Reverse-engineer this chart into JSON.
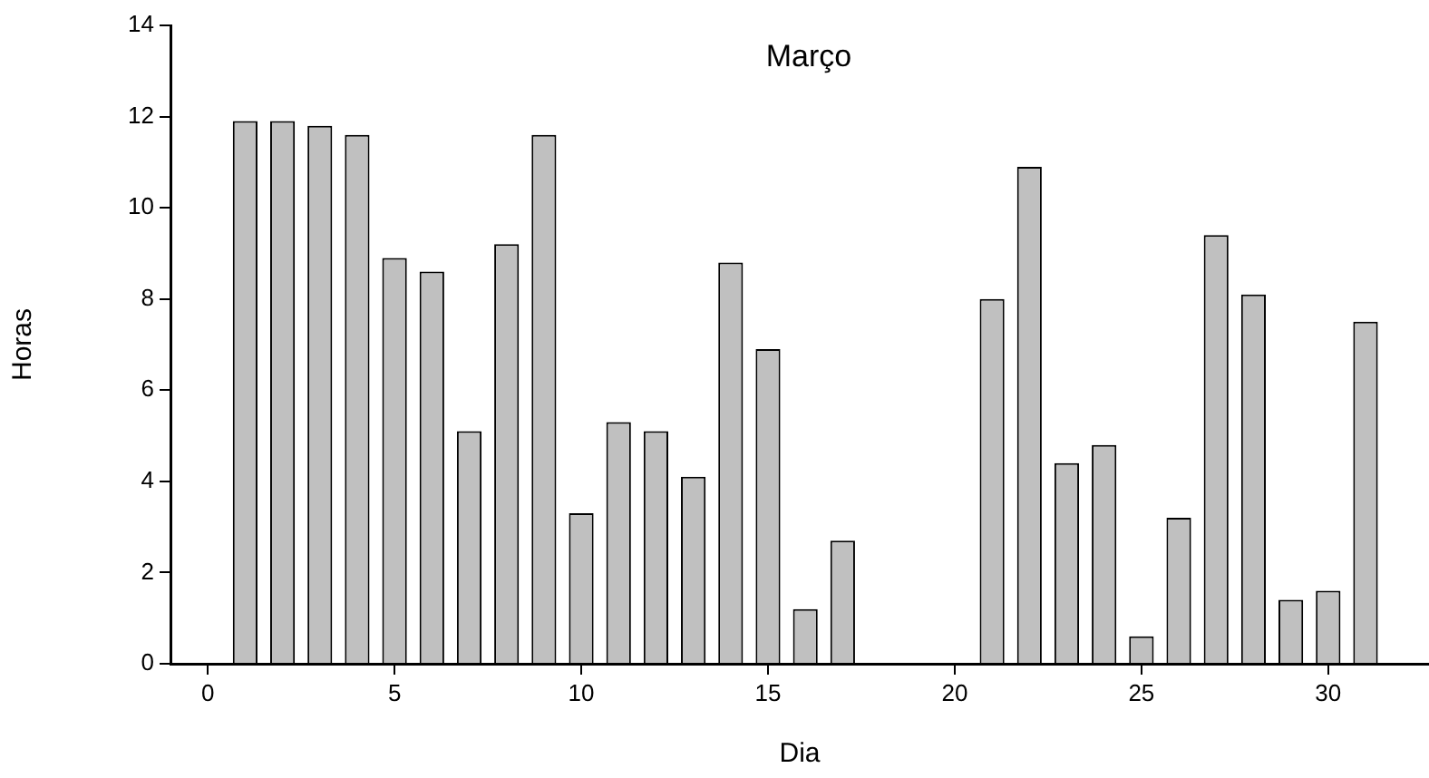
{
  "chart_data": {
    "type": "bar",
    "title": "Março",
    "xlabel": "Dia",
    "ylabel": "Horas",
    "x": [
      1,
      2,
      3,
      4,
      5,
      6,
      7,
      8,
      9,
      10,
      11,
      12,
      13,
      14,
      15,
      16,
      17,
      21,
      22,
      23,
      24,
      25,
      26,
      27,
      28,
      29,
      30,
      31
    ],
    "values": [
      11.9,
      11.9,
      11.8,
      11.6,
      8.9,
      8.6,
      5.1,
      9.2,
      11.6,
      3.3,
      5.3,
      5.1,
      4.1,
      8.8,
      6.9,
      1.2,
      2.7,
      8.0,
      10.9,
      4.4,
      4.8,
      0.6,
      3.2,
      9.4,
      8.1,
      1.4,
      1.6,
      7.5
    ],
    "color": "#c0c0c0",
    "xlim": [
      -1,
      32.7
    ],
    "xticks": [
      0,
      5,
      10,
      15,
      20,
      25,
      30
    ],
    "ylim": [
      0,
      14
    ],
    "yticks": [
      0,
      2,
      4,
      6,
      8,
      10,
      12,
      14
    ],
    "grid": false,
    "legend": false
  }
}
